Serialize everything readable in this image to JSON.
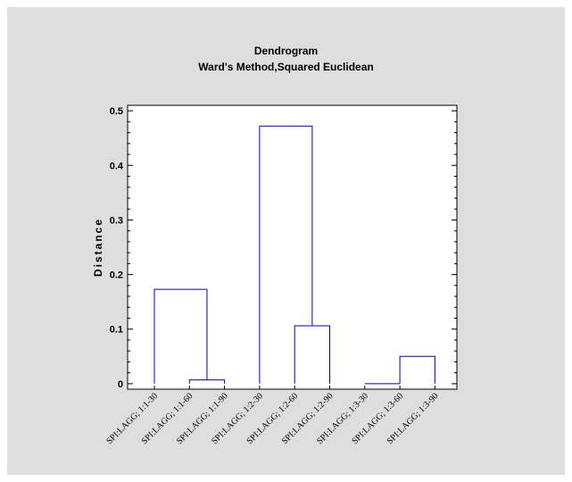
{
  "chart_data": {
    "type": "dendrogram",
    "title": "Dendrogram",
    "subtitle": "Ward's Method,Squared Euclidean",
    "xlabel": "",
    "ylabel": "Distance",
    "ylim": [
      -0.01,
      0.51
    ],
    "yticks": [
      0,
      0.1,
      0.2,
      0.3,
      0.4,
      0.5
    ],
    "ytick_labels": [
      "0",
      "0.1",
      "0.2",
      "0.3",
      "0.4",
      "0.5"
    ],
    "leaves": [
      "SPI:LAGG; 1:1-30",
      "SPI:LAGG; 1:1-60",
      "SPI:LAGG; 1:1-90",
      "SPI:LAGG; 1:2-30",
      "SPI:LAGG; 1:2-60",
      "SPI:LAGG; 1:2-90",
      "SPI:LAGG; 1:3-30",
      "SPI:LAGG; 1:3-60",
      "SPI:LAGG; 1:3-90"
    ],
    "merges": [
      {
        "left": 1,
        "right": 2,
        "height": 0.007
      },
      {
        "left": 0,
        "right": "m0",
        "height": 0.173
      },
      {
        "left": 4,
        "right": 5,
        "height": 0.106
      },
      {
        "left": 3,
        "right": "m2",
        "height": 0.472
      },
      {
        "left": 6,
        "right": 7,
        "height": 0.0
      },
      {
        "left": 7,
        "right": 8,
        "height": 0.05
      }
    ],
    "line_color": "#0000cc",
    "grid": false
  }
}
